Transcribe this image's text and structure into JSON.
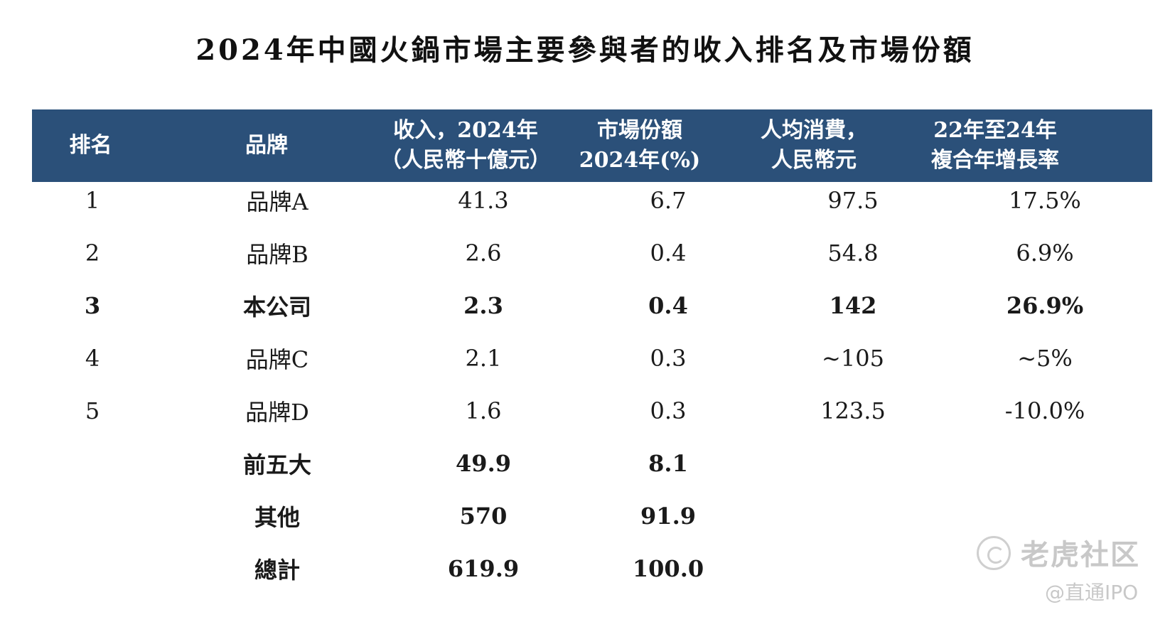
{
  "title": "2024年中國火鍋市場主要參與者的收入排名及市場份額",
  "headers": [
    "排名",
    "品牌",
    "收入，2024年\n（人民幣十億元）",
    "市場份額\n2024年(%)",
    "人均消費，\n人民幣元",
    "22年至24年\n複合年增長率"
  ],
  "rows": [
    {
      "rank": "1",
      "brand": "品牌A",
      "revenue": "41.3",
      "share": "6.7",
      "spend": "97.5",
      "cagr": "17.5%"
    },
    {
      "rank": "2",
      "brand": "品牌B",
      "revenue": "2.6",
      "share": "0.4",
      "spend": "54.8",
      "cagr": "6.9%"
    },
    {
      "rank": "3",
      "brand": "本公司",
      "revenue": "2.3",
      "share": "0.4",
      "spend": "142",
      "cagr": "26.9%"
    },
    {
      "rank": "4",
      "brand": "品牌C",
      "revenue": "2.1",
      "share": "0.3",
      "spend": "~105",
      "cagr": "~5%"
    },
    {
      "rank": "5",
      "brand": "品牌D",
      "revenue": "1.6",
      "share": "0.3",
      "spend": "123.5",
      "cagr": "-10.0%"
    },
    {
      "rank": "",
      "brand": "前五大",
      "revenue": "49.9",
      "share": "8.1",
      "spend": "",
      "cagr": ""
    },
    {
      "rank": "",
      "brand": "其他",
      "revenue": "570",
      "share": "91.9",
      "spend": "",
      "cagr": ""
    },
    {
      "rank": "",
      "brand": "總計",
      "revenue": "619.9",
      "share": "100.0",
      "spend": "",
      "cagr": ""
    }
  ],
  "watermark": {
    "name": "老虎社区",
    "sub": "@直通IPO",
    "icon": "tiger-community-logo-icon"
  }
}
